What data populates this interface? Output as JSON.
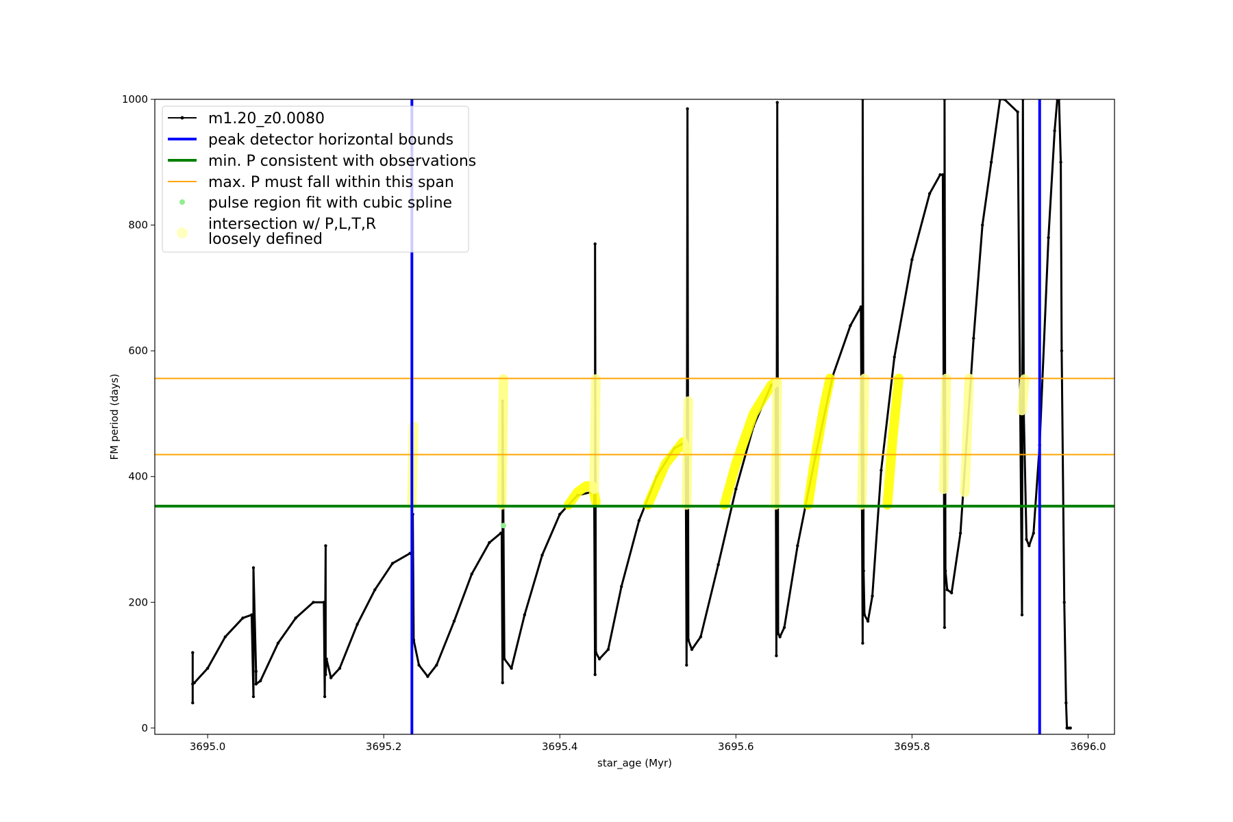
{
  "chart_data": {
    "type": "line",
    "title": "",
    "xlabel": "star_age (Myr)",
    "ylabel": "FM period (days)",
    "xlim": [
      3694.94,
      3696.03
    ],
    "ylim": [
      -10,
      1000
    ],
    "xticks": [
      "3695.0",
      "3695.2",
      "3695.4",
      "3695.6",
      "3695.8",
      "3696.0"
    ],
    "yticks": [
      "0",
      "200",
      "400",
      "600",
      "800",
      "1000"
    ],
    "grid": false,
    "legend_position": "upper-left",
    "legend": [
      {
        "label": "m1.20_z0.0080",
        "kind": "line-marker",
        "color": "#000000"
      },
      {
        "label": "peak detector horizontal bounds",
        "kind": "line",
        "color": "#0000ff"
      },
      {
        "label": "min. P consistent with observations",
        "kind": "line",
        "color": "#008000"
      },
      {
        "label": "max. P must fall within this span",
        "kind": "line",
        "color": "#ffa500"
      },
      {
        "label": "pulse region fit with cubic spline",
        "kind": "dot",
        "color": "#90ee90"
      },
      {
        "label_lines": [
          "intersection w/ P,L,T,R",
          "loosely defined"
        ],
        "kind": "big-dot",
        "color": "#ffffc0"
      }
    ],
    "series": [
      {
        "name": "m1.20_z0.0080",
        "color": "#000000",
        "x": [
          3694.983,
          3694.983,
          3694.983,
          3694.985,
          3695.0,
          3695.02,
          3695.04,
          3695.05,
          3695.052,
          3695.052,
          3695.055,
          3695.055,
          3695.06,
          3695.08,
          3695.1,
          3695.12,
          3695.132,
          3695.133,
          3695.134,
          3695.134,
          3695.135,
          3695.14,
          3695.15,
          3695.17,
          3695.19,
          3695.21,
          3695.23,
          3695.232,
          3695.233,
          3695.233,
          3695.234,
          3695.24,
          3695.25,
          3695.26,
          3695.28,
          3695.3,
          3695.32,
          3695.333,
          3695.334,
          3695.335,
          3695.335,
          3695.337,
          3695.345,
          3695.36,
          3695.38,
          3695.4,
          3695.42,
          3695.435,
          3695.439,
          3695.44,
          3695.44,
          3695.441,
          3695.445,
          3695.455,
          3695.47,
          3695.49,
          3695.51,
          3695.53,
          3695.543,
          3695.544,
          3695.545,
          3695.546,
          3695.55,
          3695.56,
          3695.58,
          3695.6,
          3695.62,
          3695.64,
          3695.645,
          3695.646,
          3695.647,
          3695.648,
          3695.65,
          3695.655,
          3695.67,
          3695.69,
          3695.71,
          3695.73,
          3695.742,
          3695.744,
          3695.744,
          3695.745,
          3695.746,
          3695.75,
          3695.755,
          3695.765,
          3695.78,
          3695.8,
          3695.82,
          3695.832,
          3695.835,
          3695.837,
          3695.837,
          3695.838,
          3695.84,
          3695.845,
          3695.855,
          3695.87,
          3695.88,
          3695.89,
          3695.9,
          3695.905,
          3695.92,
          3695.925,
          3695.926,
          3695.927,
          3695.93,
          3695.933,
          3695.938,
          3695.945,
          3695.955,
          3695.962,
          3695.965,
          3695.967,
          3695.969,
          3695.97,
          3695.973,
          3695.975,
          3695.976,
          3695.977,
          3695.979,
          3695.98
        ],
        "y": [
          40,
          120,
          70,
          72,
          95,
          145,
          175,
          180,
          50,
          255,
          90,
          70,
          75,
          135,
          175,
          200,
          200,
          50,
          290,
          85,
          110,
          80,
          95,
          165,
          220,
          262,
          278,
          275,
          150,
          340,
          140,
          100,
          82,
          100,
          170,
          245,
          295,
          310,
          310,
          72,
          520,
          110,
          95,
          180,
          275,
          340,
          370,
          375,
          380,
          85,
          770,
          120,
          110,
          125,
          225,
          330,
          400,
          445,
          455,
          100,
          985,
          140,
          125,
          145,
          260,
          380,
          480,
          545,
          550,
          115,
          995,
          150,
          145,
          160,
          290,
          430,
          560,
          640,
          670,
          135,
          1000,
          250,
          180,
          170,
          210,
          410,
          590,
          745,
          850,
          880,
          880,
          160,
          1000,
          250,
          220,
          215,
          310,
          620,
          800,
          900,
          1000,
          1000,
          980,
          180,
          1000,
          500,
          300,
          290,
          310,
          450,
          780,
          950,
          1000,
          1000,
          900,
          600,
          200,
          40,
          0,
          0,
          0,
          0
        ]
      }
    ],
    "vertical_lines": [
      {
        "x": 3695.232,
        "color": "#0000ff",
        "name": "peak detector horizontal bounds"
      },
      {
        "x": 3695.945,
        "color": "#0000ff",
        "name": "peak detector horizontal bounds"
      }
    ],
    "horizontal_lines": [
      {
        "y": 353,
        "color": "#008000",
        "name": "min. P consistent with observations"
      },
      {
        "y": 435,
        "color": "#ffa500",
        "name": "max. P must fall within this span"
      },
      {
        "y": 556,
        "color": "#ffa500",
        "name": "max. P must fall within this span"
      }
    ],
    "highlight_segments": [
      {
        "x": [
          3695.232,
          3695.234
        ],
        "y": [
          355,
          480
        ],
        "color": "#ffff90"
      },
      {
        "x": [
          3695.334,
          3695.336
        ],
        "y": [
          355,
          555
        ],
        "color": "#ffff80"
      },
      {
        "x": [
          3695.41,
          3695.42,
          3695.43,
          3695.437,
          3695.441
        ],
        "y": [
          355,
          375,
          385,
          385,
          360
        ],
        "color": "#ffff00"
      },
      {
        "x": [
          3695.439,
          3695.441
        ],
        "y": [
          380,
          555
        ],
        "color": "#ffff90"
      },
      {
        "x": [
          3695.5,
          3695.52,
          3695.54,
          3695.545
        ],
        "y": [
          355,
          420,
          455,
          440
        ],
        "color": "#ffff00"
      },
      {
        "x": [
          3695.544,
          3695.546
        ],
        "y": [
          355,
          520
        ],
        "color": "#ffff90"
      },
      {
        "x": [
          3695.587,
          3695.6,
          3695.62,
          3695.64,
          3695.645
        ],
        "y": [
          355,
          420,
          500,
          545,
          550
        ],
        "color": "#ffff00"
      },
      {
        "x": [
          3695.645,
          3695.647
        ],
        "y": [
          355,
          550
        ],
        "color": "#ffff90"
      },
      {
        "x": [
          3695.682,
          3695.69,
          3695.7,
          3695.707
        ],
        "y": [
          355,
          430,
          510,
          556
        ],
        "color": "#ffff00"
      },
      {
        "x": [
          3695.743,
          3695.746
        ],
        "y": [
          355,
          556
        ],
        "color": "#ffff90"
      },
      {
        "x": [
          3695.772,
          3695.778,
          3695.785
        ],
        "y": [
          355,
          460,
          556
        ],
        "color": "#ffff00"
      },
      {
        "x": [
          3695.836,
          3695.839
        ],
        "y": [
          380,
          556
        ],
        "color": "#ffff90"
      },
      {
        "x": [
          3695.86,
          3695.865
        ],
        "y": [
          375,
          556
        ],
        "color": "#ffff90"
      },
      {
        "x": [
          3695.925,
          3695.928
        ],
        "y": [
          505,
          555
        ],
        "color": "#ffff90"
      }
    ],
    "spline_points": [
      {
        "x": 3695.336,
        "y": 322,
        "color": "#90ee90"
      }
    ]
  }
}
